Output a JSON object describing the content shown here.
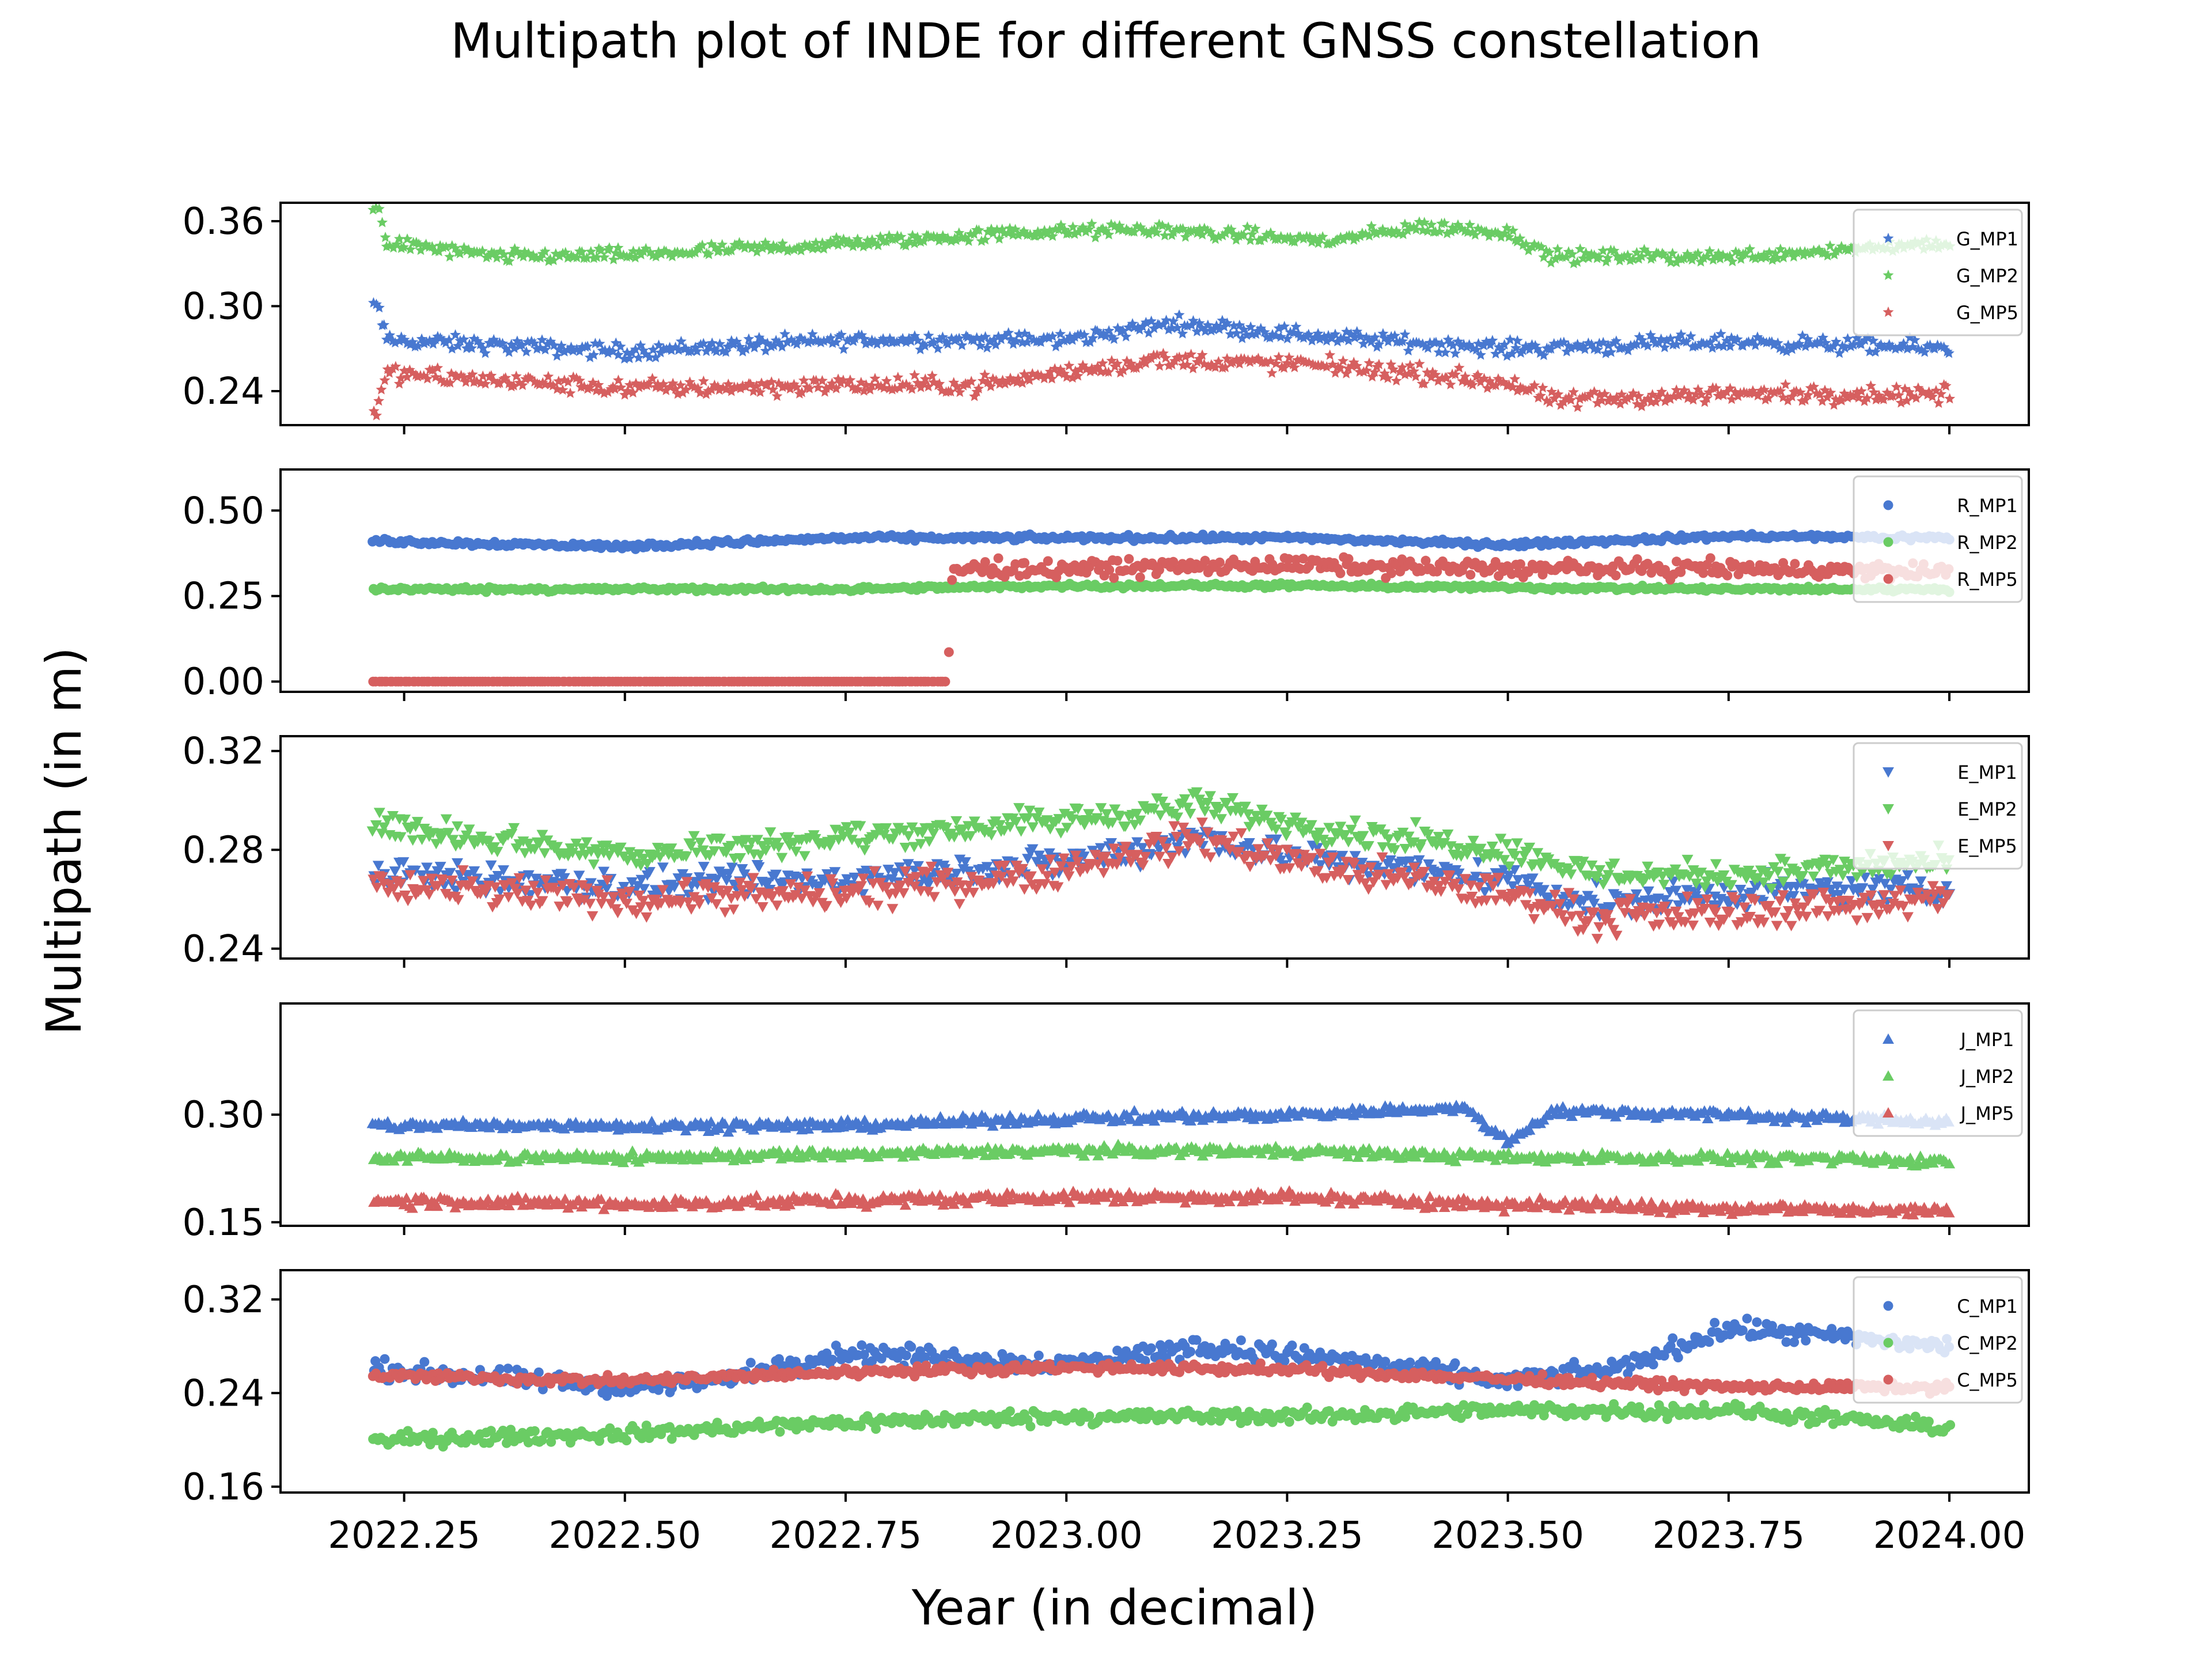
{
  "figure": {
    "title": "Multipath plot of INDE for different GNSS constellation",
    "xlabel": "Year (in decimal)",
    "ylabel": "Multipath (in m)"
  },
  "chart_data": [
    {
      "type": "scatter",
      "marker": "star",
      "xlim": [
        2022.11,
        2024.09
      ],
      "ylim": [
        0.216,
        0.373
      ],
      "yticks": [
        0.24,
        0.3,
        0.36
      ],
      "ytick_labels": [
        "0.24",
        "0.30",
        "0.36"
      ],
      "legend_position": "top-right",
      "series": [
        {
          "name": "G_MP1",
          "color": "#4878d0",
          "base": [
            [
              2022.22,
              0.3
            ],
            [
              2022.23,
              0.276
            ],
            [
              2022.5,
              0.268
            ],
            [
              2022.75,
              0.276
            ],
            [
              2023.0,
              0.276
            ],
            [
              2023.12,
              0.288
            ],
            [
              2023.3,
              0.278
            ],
            [
              2023.5,
              0.27
            ],
            [
              2023.75,
              0.275
            ],
            [
              2024.0,
              0.27
            ]
          ],
          "noise": 0.008
        },
        {
          "name": "G_MP2",
          "color": "#6acc64",
          "base": [
            [
              2022.22,
              0.37
            ],
            [
              2022.23,
              0.345
            ],
            [
              2022.35,
              0.335
            ],
            [
              2022.5,
              0.336
            ],
            [
              2022.75,
              0.344
            ],
            [
              2022.95,
              0.352
            ],
            [
              2023.1,
              0.354
            ],
            [
              2023.3,
              0.346
            ],
            [
              2023.4,
              0.356
            ],
            [
              2023.5,
              0.352
            ],
            [
              2023.55,
              0.335
            ],
            [
              2023.75,
              0.335
            ],
            [
              2024.0,
              0.345
            ]
          ],
          "noise": 0.007
        },
        {
          "name": "G_MP5",
          "color": "#d65f5f",
          "base": [
            [
              2022.22,
              0.226
            ],
            [
              2022.23,
              0.252
            ],
            [
              2022.5,
              0.242
            ],
            [
              2022.75,
              0.244
            ],
            [
              2022.9,
              0.244
            ],
            [
              2023.1,
              0.262
            ],
            [
              2023.3,
              0.258
            ],
            [
              2023.5,
              0.246
            ],
            [
              2023.55,
              0.233
            ],
            [
              2023.75,
              0.238
            ],
            [
              2024.0,
              0.238
            ]
          ],
          "noise": 0.009
        }
      ]
    },
    {
      "type": "scatter",
      "marker": "circle",
      "xlim": [
        2022.11,
        2024.09
      ],
      "ylim": [
        -0.03,
        0.62
      ],
      "yticks": [
        0.0,
        0.25,
        0.5
      ],
      "ytick_labels": [
        "0.00",
        "0.25",
        "0.50"
      ],
      "legend_position": "top-right",
      "series": [
        {
          "name": "R_MP1",
          "color": "#4878d0",
          "base": [
            [
              2022.22,
              0.41
            ],
            [
              2022.5,
              0.395
            ],
            [
              2022.75,
              0.42
            ],
            [
              2023.0,
              0.42
            ],
            [
              2023.25,
              0.42
            ],
            [
              2023.5,
              0.4
            ],
            [
              2023.75,
              0.425
            ],
            [
              2024.0,
              0.42
            ]
          ],
          "noise": 0.012
        },
        {
          "name": "R_MP2",
          "color": "#6acc64",
          "base": [
            [
              2022.22,
              0.27
            ],
            [
              2022.5,
              0.27
            ],
            [
              2022.75,
              0.27
            ],
            [
              2023.0,
              0.28
            ],
            [
              2023.25,
              0.28
            ],
            [
              2023.5,
              0.275
            ],
            [
              2023.75,
              0.27
            ],
            [
              2024.0,
              0.27
            ]
          ],
          "noise": 0.01
        },
        {
          "name": "R_MP5",
          "color": "#d65f5f",
          "base": [
            [
              2022.22,
              0.0
            ],
            [
              2022.865,
              0.0
            ],
            [
              2022.87,
              0.33
            ],
            [
              2023.0,
              0.33
            ],
            [
              2023.25,
              0.34
            ],
            [
              2023.5,
              0.33
            ],
            [
              2023.75,
              0.33
            ],
            [
              2024.0,
              0.32
            ]
          ],
          "noise": 0.035
        }
      ]
    },
    {
      "type": "scatter",
      "marker": "triangle-down",
      "xlim": [
        2022.11,
        2024.09
      ],
      "ylim": [
        0.236,
        0.326
      ],
      "yticks": [
        0.24,
        0.28,
        0.32
      ],
      "ytick_labels": [
        "0.24",
        "0.28",
        "0.32"
      ],
      "legend_position": "top-right",
      "series": [
        {
          "name": "E_MP1",
          "color": "#4878d0",
          "base": [
            [
              2022.22,
              0.27
            ],
            [
              2022.5,
              0.265
            ],
            [
              2022.75,
              0.268
            ],
            [
              2023.0,
              0.275
            ],
            [
              2023.15,
              0.285
            ],
            [
              2023.3,
              0.275
            ],
            [
              2023.5,
              0.268
            ],
            [
              2023.6,
              0.258
            ],
            [
              2023.75,
              0.262
            ],
            [
              2024.0,
              0.265
            ]
          ],
          "noise": 0.009
        },
        {
          "name": "E_MP2",
          "color": "#6acc64",
          "base": [
            [
              2022.22,
              0.29
            ],
            [
              2022.5,
              0.278
            ],
            [
              2022.75,
              0.285
            ],
            [
              2023.0,
              0.292
            ],
            [
              2023.15,
              0.298
            ],
            [
              2023.3,
              0.288
            ],
            [
              2023.5,
              0.28
            ],
            [
              2023.6,
              0.27
            ],
            [
              2023.75,
              0.27
            ],
            [
              2024.0,
              0.275
            ]
          ],
          "noise": 0.008
        },
        {
          "name": "E_MP5",
          "color": "#d65f5f",
          "base": [
            [
              2022.22,
              0.265
            ],
            [
              2022.5,
              0.26
            ],
            [
              2022.75,
              0.262
            ],
            [
              2023.0,
              0.272
            ],
            [
              2023.15,
              0.285
            ],
            [
              2023.3,
              0.272
            ],
            [
              2023.5,
              0.262
            ],
            [
              2023.6,
              0.252
            ],
            [
              2023.75,
              0.255
            ],
            [
              2024.0,
              0.26
            ]
          ],
          "noise": 0.01
        }
      ]
    },
    {
      "type": "scatter",
      "marker": "triangle-up",
      "xlim": [
        2022.11,
        2024.09
      ],
      "ylim": [
        0.145,
        0.455
      ],
      "yticks": [
        0.15,
        0.3
      ],
      "ytick_labels": [
        "0.15",
        "0.30"
      ],
      "legend_position": "top-right",
      "series": [
        {
          "name": "J_MP1",
          "color": "#4878d0",
          "base": [
            [
              2022.22,
              0.285
            ],
            [
              2022.5,
              0.285
            ],
            [
              2022.75,
              0.285
            ],
            [
              2023.0,
              0.295
            ],
            [
              2023.25,
              0.3
            ],
            [
              2023.45,
              0.31
            ],
            [
              2023.5,
              0.26
            ],
            [
              2023.55,
              0.305
            ],
            [
              2023.75,
              0.3
            ],
            [
              2024.0,
              0.29
            ]
          ],
          "noise": 0.01
        },
        {
          "name": "J_MP2",
          "color": "#6acc64",
          "base": [
            [
              2022.22,
              0.24
            ],
            [
              2022.5,
              0.24
            ],
            [
              2022.75,
              0.245
            ],
            [
              2023.0,
              0.25
            ],
            [
              2023.25,
              0.25
            ],
            [
              2023.5,
              0.24
            ],
            [
              2023.75,
              0.24
            ],
            [
              2024.0,
              0.235
            ]
          ],
          "noise": 0.01
        },
        {
          "name": "J_MP5",
          "color": "#d65f5f",
          "base": [
            [
              2022.22,
              0.18
            ],
            [
              2022.5,
              0.175
            ],
            [
              2022.75,
              0.18
            ],
            [
              2023.0,
              0.185
            ],
            [
              2023.25,
              0.185
            ],
            [
              2023.5,
              0.175
            ],
            [
              2023.75,
              0.17
            ],
            [
              2024.0,
              0.165
            ]
          ],
          "noise": 0.012
        }
      ]
    },
    {
      "type": "scatter",
      "marker": "circle",
      "xlim": [
        2022.11,
        2024.09
      ],
      "ylim": [
        0.155,
        0.345
      ],
      "yticks": [
        0.16,
        0.24,
        0.32
      ],
      "ytick_labels": [
        "0.16",
        "0.24",
        "0.32"
      ],
      "legend_position": "top-right",
      "series": [
        {
          "name": "C_MP1",
          "color": "#4878d0",
          "base": [
            [
              2022.22,
              0.26
            ],
            [
              2022.5,
              0.245
            ],
            [
              2022.6,
              0.25
            ],
            [
              2022.75,
              0.275
            ],
            [
              2023.0,
              0.265
            ],
            [
              2023.15,
              0.28
            ],
            [
              2023.3,
              0.27
            ],
            [
              2023.5,
              0.25
            ],
            [
              2023.62,
              0.26
            ],
            [
              2023.75,
              0.295
            ],
            [
              2024.0,
              0.28
            ]
          ],
          "noise": 0.012
        },
        {
          "name": "C_MP2",
          "color": "#6acc64",
          "base": [
            [
              2022.22,
              0.2
            ],
            [
              2022.5,
              0.205
            ],
            [
              2022.75,
              0.215
            ],
            [
              2023.0,
              0.22
            ],
            [
              2023.25,
              0.22
            ],
            [
              2023.5,
              0.225
            ],
            [
              2023.75,
              0.225
            ],
            [
              2024.0,
              0.21
            ]
          ],
          "noise": 0.009
        },
        {
          "name": "C_MP5",
          "color": "#d65f5f",
          "base": [
            [
              2022.22,
              0.255
            ],
            [
              2022.5,
              0.25
            ],
            [
              2022.75,
              0.258
            ],
            [
              2023.0,
              0.262
            ],
            [
              2023.25,
              0.26
            ],
            [
              2023.5,
              0.252
            ],
            [
              2023.75,
              0.245
            ],
            [
              2024.0,
              0.245
            ]
          ],
          "noise": 0.006
        }
      ]
    }
  ],
  "xaxis": {
    "ticks": [
      2022.25,
      2022.5,
      2022.75,
      2023.0,
      2023.25,
      2023.5,
      2023.75,
      2024.0
    ],
    "tick_labels": [
      "2022.25",
      "2022.50",
      "2022.75",
      "2023.00",
      "2023.25",
      "2023.50",
      "2023.75",
      "2024.00"
    ]
  }
}
